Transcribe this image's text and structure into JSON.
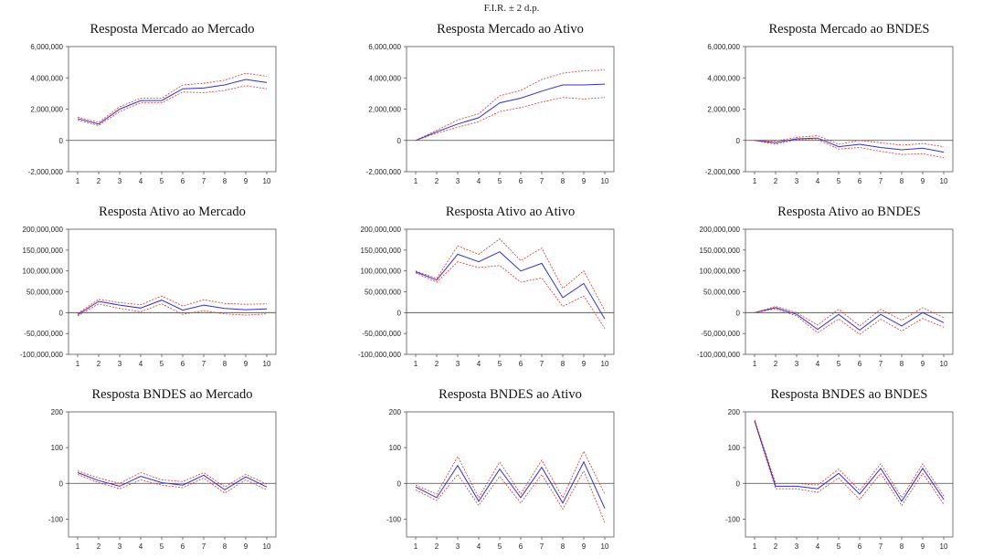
{
  "figure": {
    "title": "F.I.R. ± 2 d.p."
  },
  "colors": {
    "center": "#3030c8",
    "band": "#e03030",
    "frame": "#555555",
    "zero": "#444444"
  },
  "chart_data": [
    {
      "type": "line",
      "title": "Resposta Mercado ao Mercado",
      "categories": [
        1,
        2,
        3,
        4,
        5,
        6,
        7,
        8,
        9,
        10
      ],
      "ylim": [
        -2000000,
        6000000
      ],
      "yticks": [
        6000000,
        4000000,
        2000000,
        0,
        -2000000
      ],
      "ytick_labels": [
        "6,000,000",
        "4,000,000",
        "2,000,000",
        "0",
        "-2,000,000"
      ],
      "series": [
        {
          "role": "upper",
          "values": [
            1500000,
            1150000,
            2150000,
            2700000,
            2700000,
            3550000,
            3650000,
            3850000,
            4300000,
            4100000
          ]
        },
        {
          "role": "center",
          "values": [
            1400000,
            1050000,
            2000000,
            2550000,
            2550000,
            3300000,
            3350000,
            3550000,
            3900000,
            3700000
          ]
        },
        {
          "role": "lower",
          "values": [
            1300000,
            950000,
            1850000,
            2400000,
            2400000,
            3100000,
            3050000,
            3200000,
            3500000,
            3300000
          ]
        }
      ]
    },
    {
      "type": "line",
      "title": "Resposta Mercado ao Ativo",
      "categories": [
        1,
        2,
        3,
        4,
        5,
        6,
        7,
        8,
        9,
        10
      ],
      "ylim": [
        -2000000,
        6000000
      ],
      "yticks": [
        6000000,
        4000000,
        2000000,
        0,
        -2000000
      ],
      "ytick_labels": [
        "6,000,000",
        "4,000,000",
        "2,000,000",
        "0",
        "-2,000,000"
      ],
      "series": [
        {
          "role": "upper",
          "values": [
            0,
            650000,
            1300000,
            1700000,
            2850000,
            3200000,
            3900000,
            4300000,
            4450000,
            4500000
          ]
        },
        {
          "role": "center",
          "values": [
            0,
            550000,
            1050000,
            1450000,
            2400000,
            2700000,
            3150000,
            3550000,
            3550000,
            3600000
          ]
        },
        {
          "role": "lower",
          "values": [
            0,
            450000,
            850000,
            1200000,
            1850000,
            2100000,
            2450000,
            2750000,
            2650000,
            2750000
          ]
        }
      ]
    },
    {
      "type": "line",
      "title": "Resposta Mercado ao BNDES",
      "categories": [
        1,
        2,
        3,
        4,
        5,
        6,
        7,
        8,
        9,
        10
      ],
      "ylim": [
        -2000000,
        6000000
      ],
      "yticks": [
        6000000,
        4000000,
        2000000,
        0,
        -2000000
      ],
      "ytick_labels": [
        "6,000,000",
        "4,000,000",
        "2,000,000",
        "0",
        "-2,000,000"
      ],
      "series": [
        {
          "role": "upper",
          "values": [
            0,
            -50000,
            200000,
            300000,
            -250000,
            0,
            -150000,
            -300000,
            -200000,
            -400000
          ]
        },
        {
          "role": "center",
          "values": [
            0,
            -150000,
            100000,
            150000,
            -400000,
            -250000,
            -450000,
            -600000,
            -500000,
            -750000
          ]
        },
        {
          "role": "lower",
          "values": [
            0,
            -250000,
            50000,
            50000,
            -550000,
            -450000,
            -700000,
            -900000,
            -850000,
            -1100000
          ]
        }
      ]
    },
    {
      "type": "line",
      "title": "Resposta Ativo ao Mercado",
      "categories": [
        1,
        2,
        3,
        4,
        5,
        6,
        7,
        8,
        9,
        10
      ],
      "ylim": [
        -100000000,
        200000000
      ],
      "yticks": [
        200000000,
        150000000,
        100000000,
        50000000,
        0,
        -50000000,
        -100000000
      ],
      "ytick_labels": [
        "200,000,000",
        "150,000,000",
        "100,000,000",
        "50,000,000",
        "0",
        "-50,000,000",
        "-100,000,000"
      ],
      "series": [
        {
          "role": "upper",
          "values": [
            -2000000,
            32000000,
            24000000,
            19000000,
            40000000,
            16000000,
            31000000,
            22000000,
            20000000,
            21000000
          ]
        },
        {
          "role": "center",
          "values": [
            -5000000,
            27000000,
            18000000,
            11000000,
            30000000,
            6000000,
            18000000,
            10000000,
            7000000,
            9000000
          ]
        },
        {
          "role": "lower",
          "values": [
            -8000000,
            21000000,
            10000000,
            2000000,
            21000000,
            -4000000,
            5000000,
            -3000000,
            -6000000,
            -3000000
          ]
        }
      ]
    },
    {
      "type": "line",
      "title": "Resposta Ativo ao Ativo",
      "categories": [
        1,
        2,
        3,
        4,
        5,
        6,
        7,
        8,
        9,
        10
      ],
      "ylim": [
        -100000000,
        200000000
      ],
      "yticks": [
        200000000,
        150000000,
        100000000,
        50000000,
        0,
        -50000000,
        -100000000
      ],
      "ytick_labels": [
        "200,000,000",
        "150,000,000",
        "100,000,000",
        "50,000,000",
        "0",
        "-50,000,000",
        "-100,000,000"
      ],
      "series": [
        {
          "role": "upper",
          "values": [
            100000000,
            82000000,
            160000000,
            140000000,
            177000000,
            125000000,
            155000000,
            58000000,
            100000000,
            5000000
          ]
        },
        {
          "role": "center",
          "values": [
            98000000,
            78000000,
            140000000,
            122000000,
            146000000,
            100000000,
            118000000,
            36000000,
            70000000,
            -15000000
          ]
        },
        {
          "role": "lower",
          "values": [
            95000000,
            73000000,
            122000000,
            108000000,
            113000000,
            73000000,
            83000000,
            15000000,
            40000000,
            -38000000
          ]
        }
      ]
    },
    {
      "type": "line",
      "title": "Resposta Ativo ao BNDES",
      "categories": [
        1,
        2,
        3,
        4,
        5,
        6,
        7,
        8,
        9,
        10
      ],
      "ylim": [
        -100000000,
        200000000
      ],
      "yticks": [
        200000000,
        150000000,
        100000000,
        50000000,
        0,
        -50000000,
        -100000000
      ],
      "ytick_labels": [
        "200,000,000",
        "150,000,000",
        "100,000,000",
        "50,000,000",
        "0",
        "-50,000,000",
        "-100,000,000"
      ],
      "series": [
        {
          "role": "upper",
          "values": [
            0,
            15000000,
            0,
            -30000000,
            8000000,
            -32000000,
            8000000,
            -18000000,
            12000000,
            -12000000
          ]
        },
        {
          "role": "center",
          "values": [
            0,
            12000000,
            -4000000,
            -40000000,
            -4000000,
            -42000000,
            -4000000,
            -32000000,
            0,
            -24000000
          ]
        },
        {
          "role": "lower",
          "values": [
            0,
            9000000,
            -8000000,
            -48000000,
            -15000000,
            -52000000,
            -16000000,
            -44000000,
            -14000000,
            -35000000
          ]
        }
      ]
    },
    {
      "type": "line",
      "title": "Resposta BNDES ao Mercado",
      "categories": [
        1,
        2,
        3,
        4,
        5,
        6,
        7,
        8,
        9,
        10
      ],
      "ylim": [
        -150,
        200
      ],
      "yticks": [
        200,
        100,
        0,
        -100
      ],
      "ytick_labels": [
        "200",
        "100",
        "0",
        "-100"
      ],
      "series": [
        {
          "role": "upper",
          "values": [
            35,
            15,
            0,
            30,
            10,
            5,
            30,
            -10,
            25,
            -2
          ]
        },
        {
          "role": "center",
          "values": [
            30,
            8,
            -8,
            20,
            2,
            -5,
            23,
            -18,
            18,
            -10
          ]
        },
        {
          "role": "lower",
          "values": [
            25,
            2,
            -15,
            10,
            -5,
            -12,
            15,
            -27,
            10,
            -18
          ]
        }
      ]
    },
    {
      "type": "line",
      "title": "Resposta BNDES ao Ativo",
      "categories": [
        1,
        2,
        3,
        4,
        5,
        6,
        7,
        8,
        9,
        10
      ],
      "ylim": [
        -150,
        200
      ],
      "yticks": [
        200,
        100,
        0,
        -100
      ],
      "ytick_labels": [
        "200",
        "100",
        "0",
        "-100"
      ],
      "series": [
        {
          "role": "upper",
          "values": [
            -5,
            -30,
            75,
            -40,
            60,
            -30,
            65,
            -40,
            90,
            -30
          ]
        },
        {
          "role": "center",
          "values": [
            -10,
            -40,
            50,
            -50,
            40,
            -40,
            45,
            -55,
            60,
            -70
          ]
        },
        {
          "role": "lower",
          "values": [
            -18,
            -48,
            25,
            -62,
            20,
            -55,
            25,
            -72,
            35,
            -110
          ]
        }
      ]
    },
    {
      "type": "line",
      "title": "Resposta BNDES ao BNDES",
      "categories": [
        1,
        2,
        3,
        4,
        5,
        6,
        7,
        8,
        9,
        10
      ],
      "ylim": [
        -150,
        200
      ],
      "yticks": [
        200,
        100,
        0,
        -100
      ],
      "ytick_labels": [
        "200",
        "100",
        "0",
        "-100"
      ],
      "series": [
        {
          "role": "upper",
          "values": [
            178,
            0,
            0,
            -5,
            40,
            -20,
            55,
            -40,
            55,
            -35
          ]
        },
        {
          "role": "center",
          "values": [
            175,
            -8,
            -8,
            -15,
            28,
            -30,
            42,
            -50,
            42,
            -45
          ]
        },
        {
          "role": "lower",
          "values": [
            172,
            -15,
            -15,
            -25,
            15,
            -45,
            28,
            -62,
            28,
            -58
          ]
        }
      ]
    }
  ]
}
